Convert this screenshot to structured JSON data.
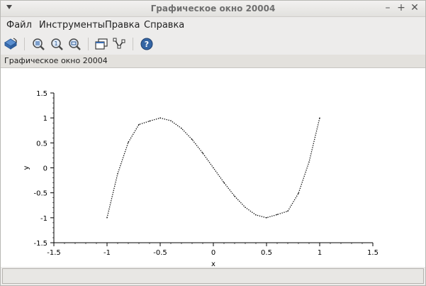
{
  "window": {
    "title": "Графическое окно 20004"
  },
  "window_controls": {
    "minimize": "–",
    "maximize": "+",
    "close": "✕"
  },
  "menu": {
    "items": [
      "Файл",
      "Инструменты",
      "Правка",
      "Справка"
    ]
  },
  "toolbar": {
    "buttons": [
      {
        "icon": "rotate-icon"
      },
      {
        "icon": "zoom-grid-icon"
      },
      {
        "icon": "zoom-in-icon"
      },
      {
        "icon": "zoom-out-icon"
      },
      {
        "icon": "windows-icon"
      },
      {
        "icon": "data-tips-icon"
      },
      {
        "icon": "help-icon"
      }
    ]
  },
  "infobar": {
    "text": "Графическое окно 20004"
  },
  "chart_data": {
    "type": "line",
    "title": "",
    "xlabel": "x",
    "ylabel": "y",
    "xlim": [
      -1.5,
      1.5
    ],
    "ylim": [
      -1.5,
      1.5
    ],
    "x_ticks": [
      "-1.5",
      "-1",
      "-0.5",
      "0",
      "0.5",
      "1",
      "1.5"
    ],
    "y_ticks": [
      "1.5",
      "1",
      "0.5",
      "0",
      "-0.5",
      "-1",
      "-1.5"
    ],
    "grid": false,
    "line_style": "dotted",
    "series": [
      {
        "x": [
          -1.0,
          -0.9,
          -0.8,
          -0.7,
          -0.6,
          -0.5,
          -0.4,
          -0.3,
          -0.2,
          -0.1,
          0.0,
          0.1,
          0.2,
          0.3,
          0.4,
          0.5,
          0.6,
          0.7,
          0.8,
          0.9,
          1.0
        ],
        "y": [
          -1.0,
          -0.116,
          0.512,
          0.868,
          0.936,
          1.0,
          0.944,
          0.792,
          0.568,
          0.296,
          0.0,
          -0.296,
          -0.568,
          -0.792,
          -0.944,
          -1.0,
          -0.936,
          -0.868,
          -0.512,
          0.116,
          1.0
        ]
      }
    ]
  }
}
